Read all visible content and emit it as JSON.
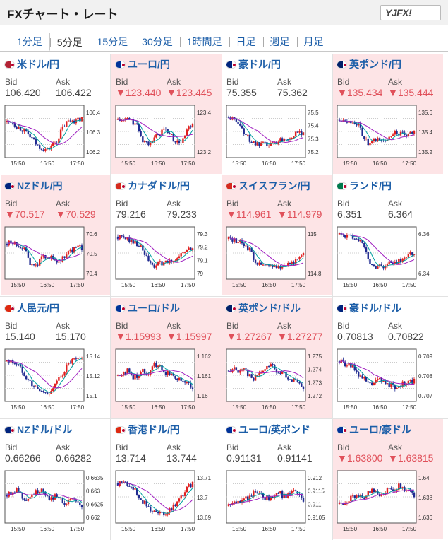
{
  "header": {
    "title": "FXチャート・レート",
    "logo": "YJFX!"
  },
  "tabs": [
    "1分足",
    "5分足",
    "15分足",
    "30分足",
    "1時間足",
    "日足",
    "週足",
    "月足"
  ],
  "active_tab": 1,
  "labels": {
    "bid": "Bid",
    "ask": "Ask"
  },
  "time_labels": [
    "15:50",
    "16:50",
    "17:50"
  ],
  "colors": {
    "down": "#e0505a",
    "link": "#1c5ea8",
    "pink_bg": "#fde4e6",
    "candle_up": "#e02020",
    "candle_down": "#1f2a90",
    "ma1": "#00a0a0",
    "ma2": "#a020c0"
  },
  "pairs": [
    {
      "name": "米ドル/円",
      "bid": "106.420",
      "ask": "106.422",
      "trend": "flat",
      "highlight": false,
      "flag": "us-jp",
      "yticks": [
        "106.4",
        "106.3",
        "106.2"
      ],
      "shape": [
        0.7,
        0.72,
        0.6,
        0.55,
        0.45,
        0.35,
        0.2,
        0.15,
        0.1,
        0.2,
        0.3,
        0.55,
        0.7,
        0.75,
        0.72,
        0.8
      ]
    },
    {
      "name": "ユーロ/円",
      "bid": "123.440",
      "ask": "123.445",
      "trend": "down",
      "highlight": true,
      "flag": "eu-jp",
      "yticks": [
        "123.4",
        "123.2"
      ],
      "shape": [
        0.75,
        0.72,
        0.78,
        0.7,
        0.6,
        0.3,
        0.25,
        0.35,
        0.4,
        0.55,
        0.5,
        0.35,
        0.25,
        0.3,
        0.55,
        0.6
      ]
    },
    {
      "name": "豪ドル/円",
      "bid": "75.355",
      "ask": "75.362",
      "trend": "flat",
      "highlight": false,
      "flag": "au-jp",
      "yticks": [
        "75.5",
        "75.4",
        "75.3",
        "75.2"
      ],
      "shape": [
        0.8,
        0.75,
        0.7,
        0.5,
        0.35,
        0.25,
        0.2,
        0.22,
        0.2,
        0.25,
        0.3,
        0.35,
        0.38,
        0.42,
        0.45,
        0.5
      ]
    },
    {
      "name": "英ポンド/円",
      "bid": "135.434",
      "ask": "135.444",
      "trend": "down",
      "highlight": true,
      "flag": "gb-jp",
      "yticks": [
        "135.6",
        "135.4",
        "135.2"
      ],
      "shape": [
        0.75,
        0.78,
        0.7,
        0.72,
        0.6,
        0.35,
        0.2,
        0.3,
        0.35,
        0.25,
        0.4,
        0.5,
        0.45,
        0.4,
        0.42,
        0.48
      ]
    },
    {
      "name": "NZドル/円",
      "bid": "70.517",
      "ask": "70.529",
      "trend": "down",
      "highlight": true,
      "flag": "nz-jp",
      "yticks": [
        "70.6",
        "70.5",
        "70.4"
      ],
      "shape": [
        0.7,
        0.72,
        0.68,
        0.65,
        0.45,
        0.2,
        0.25,
        0.4,
        0.45,
        0.38,
        0.3,
        0.35,
        0.5,
        0.55,
        0.6,
        0.62
      ]
    },
    {
      "name": "カナダドル/円",
      "bid": "79.216",
      "ask": "79.233",
      "trend": "flat",
      "highlight": false,
      "flag": "ca-jp",
      "yticks": [
        "79.3",
        "79.2",
        "79.1",
        "79"
      ],
      "shape": [
        0.85,
        0.82,
        0.8,
        0.75,
        0.7,
        0.55,
        0.35,
        0.2,
        0.25,
        0.3,
        0.28,
        0.35,
        0.4,
        0.5,
        0.55,
        0.6
      ]
    },
    {
      "name": "スイスフラン/円",
      "bid": "114.961",
      "ask": "114.979",
      "trend": "down",
      "highlight": true,
      "flag": "ch-jp",
      "yticks": [
        "115",
        "114.8"
      ],
      "shape": [
        0.8,
        0.78,
        0.75,
        0.7,
        0.6,
        0.4,
        0.25,
        0.22,
        0.2,
        0.25,
        0.2,
        0.22,
        0.28,
        0.3,
        0.35,
        0.45
      ]
    },
    {
      "name": "ランド/円",
      "bid": "6.351",
      "ask": "6.364",
      "trend": "flat",
      "highlight": false,
      "flag": "za-jp",
      "yticks": [
        "6.36",
        "6.34"
      ],
      "shape": [
        0.9,
        0.88,
        0.85,
        0.85,
        0.8,
        0.6,
        0.3,
        0.2,
        0.25,
        0.2,
        0.3,
        0.25,
        0.35,
        0.4,
        0.45,
        0.5
      ]
    },
    {
      "name": "人民元/円",
      "bid": "15.140",
      "ask": "15.170",
      "trend": "flat",
      "highlight": false,
      "flag": "cn-jp",
      "yticks": [
        "15.14",
        "15.12",
        "15.1"
      ],
      "shape": [
        0.8,
        0.78,
        0.75,
        0.6,
        0.45,
        0.3,
        0.2,
        0.15,
        0.1,
        0.2,
        0.35,
        0.5,
        0.7,
        0.8,
        0.82,
        0.85
      ]
    },
    {
      "name": "ユーロ/ドル",
      "bid": "1.15993",
      "ask": "1.15997",
      "trend": "down",
      "highlight": true,
      "flag": "eu-us",
      "yticks": [
        "1.162",
        "1.161",
        "1.16"
      ],
      "shape": [
        0.5,
        0.55,
        0.6,
        0.45,
        0.5,
        0.6,
        0.55,
        0.7,
        0.75,
        0.6,
        0.55,
        0.5,
        0.45,
        0.4,
        0.3,
        0.25
      ]
    },
    {
      "name": "英ポンド/ドル",
      "bid": "1.27267",
      "ask": "1.27277",
      "trend": "down",
      "highlight": true,
      "flag": "gb-us",
      "yticks": [
        "1.275",
        "1.274",
        "1.273",
        "1.272"
      ],
      "shape": [
        0.6,
        0.65,
        0.55,
        0.7,
        0.5,
        0.4,
        0.55,
        0.6,
        0.75,
        0.7,
        0.5,
        0.55,
        0.45,
        0.4,
        0.3,
        0.2
      ]
    },
    {
      "name": "豪ドル/ドル",
      "bid": "0.70813",
      "ask": "0.70822",
      "trend": "flat",
      "highlight": false,
      "flag": "au-us",
      "yticks": [
        "0.709",
        "0.708",
        "0.707"
      ],
      "shape": [
        0.8,
        0.75,
        0.7,
        0.65,
        0.5,
        0.4,
        0.3,
        0.35,
        0.4,
        0.35,
        0.3,
        0.25,
        0.3,
        0.32,
        0.35,
        0.38
      ]
    },
    {
      "name": "NZドル/ドル",
      "bid": "0.66266",
      "ask": "0.66282",
      "trend": "flat",
      "highlight": false,
      "flag": "nz-us",
      "yticks": [
        "0.6635",
        "0.663",
        "0.6625",
        "0.662"
      ],
      "shape": [
        0.55,
        0.6,
        0.7,
        0.5,
        0.45,
        0.55,
        0.6,
        0.7,
        0.5,
        0.45,
        0.55,
        0.4,
        0.35,
        0.45,
        0.35,
        0.3
      ]
    },
    {
      "name": "香港ドル/円",
      "bid": "13.714",
      "ask": "13.744",
      "trend": "flat",
      "highlight": false,
      "flag": "hk-jp",
      "yticks": [
        "13.71",
        "13.7",
        "13.69"
      ],
      "shape": [
        0.8,
        0.82,
        0.78,
        0.7,
        0.55,
        0.4,
        0.3,
        0.2,
        0.15,
        0.12,
        0.2,
        0.3,
        0.4,
        0.55,
        0.7,
        0.8
      ]
    },
    {
      "name": "ユーロ/英ポンド",
      "bid": "0.91131",
      "ask": "0.91141",
      "trend": "flat",
      "highlight": false,
      "flag": "eu-gb",
      "yticks": [
        "0.912",
        "0.9115",
        "0.911",
        "0.9105"
      ],
      "shape": [
        0.3,
        0.35,
        0.4,
        0.5,
        0.45,
        0.6,
        0.55,
        0.5,
        0.45,
        0.55,
        0.6,
        0.5,
        0.55,
        0.65,
        0.5,
        0.45
      ]
    },
    {
      "name": "ユーロ/豪ドル",
      "bid": "1.63800",
      "ask": "1.63815",
      "trend": "down",
      "highlight": true,
      "flag": "eu-au",
      "yticks": [
        "1.64",
        "1.638",
        "1.636"
      ],
      "shape": [
        0.35,
        0.4,
        0.45,
        0.5,
        0.55,
        0.5,
        0.6,
        0.65,
        0.55,
        0.6,
        0.7,
        0.65,
        0.75,
        0.7,
        0.6,
        0.5
      ]
    }
  ]
}
